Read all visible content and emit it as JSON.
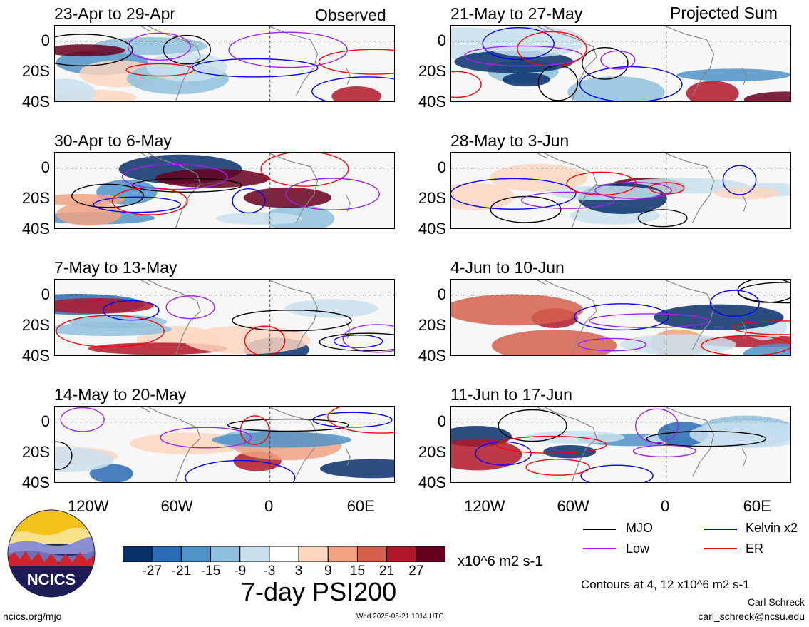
{
  "header": {
    "left_label": "Observed",
    "right_label": "Projected Sum"
  },
  "panels": [
    {
      "title": "23-Apr to 29-Apr",
      "column": "left",
      "row": 0
    },
    {
      "title": "30-Apr to 6-May",
      "column": "left",
      "row": 1
    },
    {
      "title": "7-May to 13-May",
      "column": "left",
      "row": 2
    },
    {
      "title": "14-May to 20-May",
      "column": "left",
      "row": 3
    },
    {
      "title": "21-May to 27-May",
      "column": "right",
      "row": 0
    },
    {
      "title": "28-May to 3-Jun",
      "column": "right",
      "row": 1
    },
    {
      "title": "4-Jun to 10-Jun",
      "column": "right",
      "row": 2
    },
    {
      "title": "11-Jun to 17-Jun",
      "column": "right",
      "row": 3
    }
  ],
  "axes": {
    "lat_ticks": [
      "0",
      "20S",
      "40S"
    ],
    "lon_ticks": [
      "120W",
      "60W",
      "0",
      "60E"
    ]
  },
  "legend": {
    "items": [
      {
        "label": "MJO",
        "color": "#000000"
      },
      {
        "label": "Kelvin x2",
        "color": "#0000ff"
      },
      {
        "label": "Low",
        "color": "#a020f0"
      },
      {
        "label": "ER",
        "color": "#ff0000"
      }
    ],
    "contours_note": "Contours at 4, 12 x10^6 m2 s-1"
  },
  "colorbar": {
    "ticks": [
      "-27",
      "-21",
      "-15",
      "-9",
      "-3",
      "3",
      "9",
      "15",
      "21",
      "27"
    ],
    "colors": [
      "#08306b",
      "#2a6cb5",
      "#4f94c8",
      "#8fc0dd",
      "#c9e0ef",
      "#ffffff",
      "#fdd6c0",
      "#f1a283",
      "#d6604d",
      "#b2182b",
      "#67001f"
    ],
    "units": "x10^6 m2 s-1"
  },
  "main_title": "7-day PSI200",
  "footer": {
    "site": "ncics.org/mjo",
    "timestamp": "Wed 2025-05-21 1014 UTC",
    "author": "Carl Schreck",
    "email": "carl_schreck@ncsu.edu",
    "logo_text": "NCICS"
  }
}
